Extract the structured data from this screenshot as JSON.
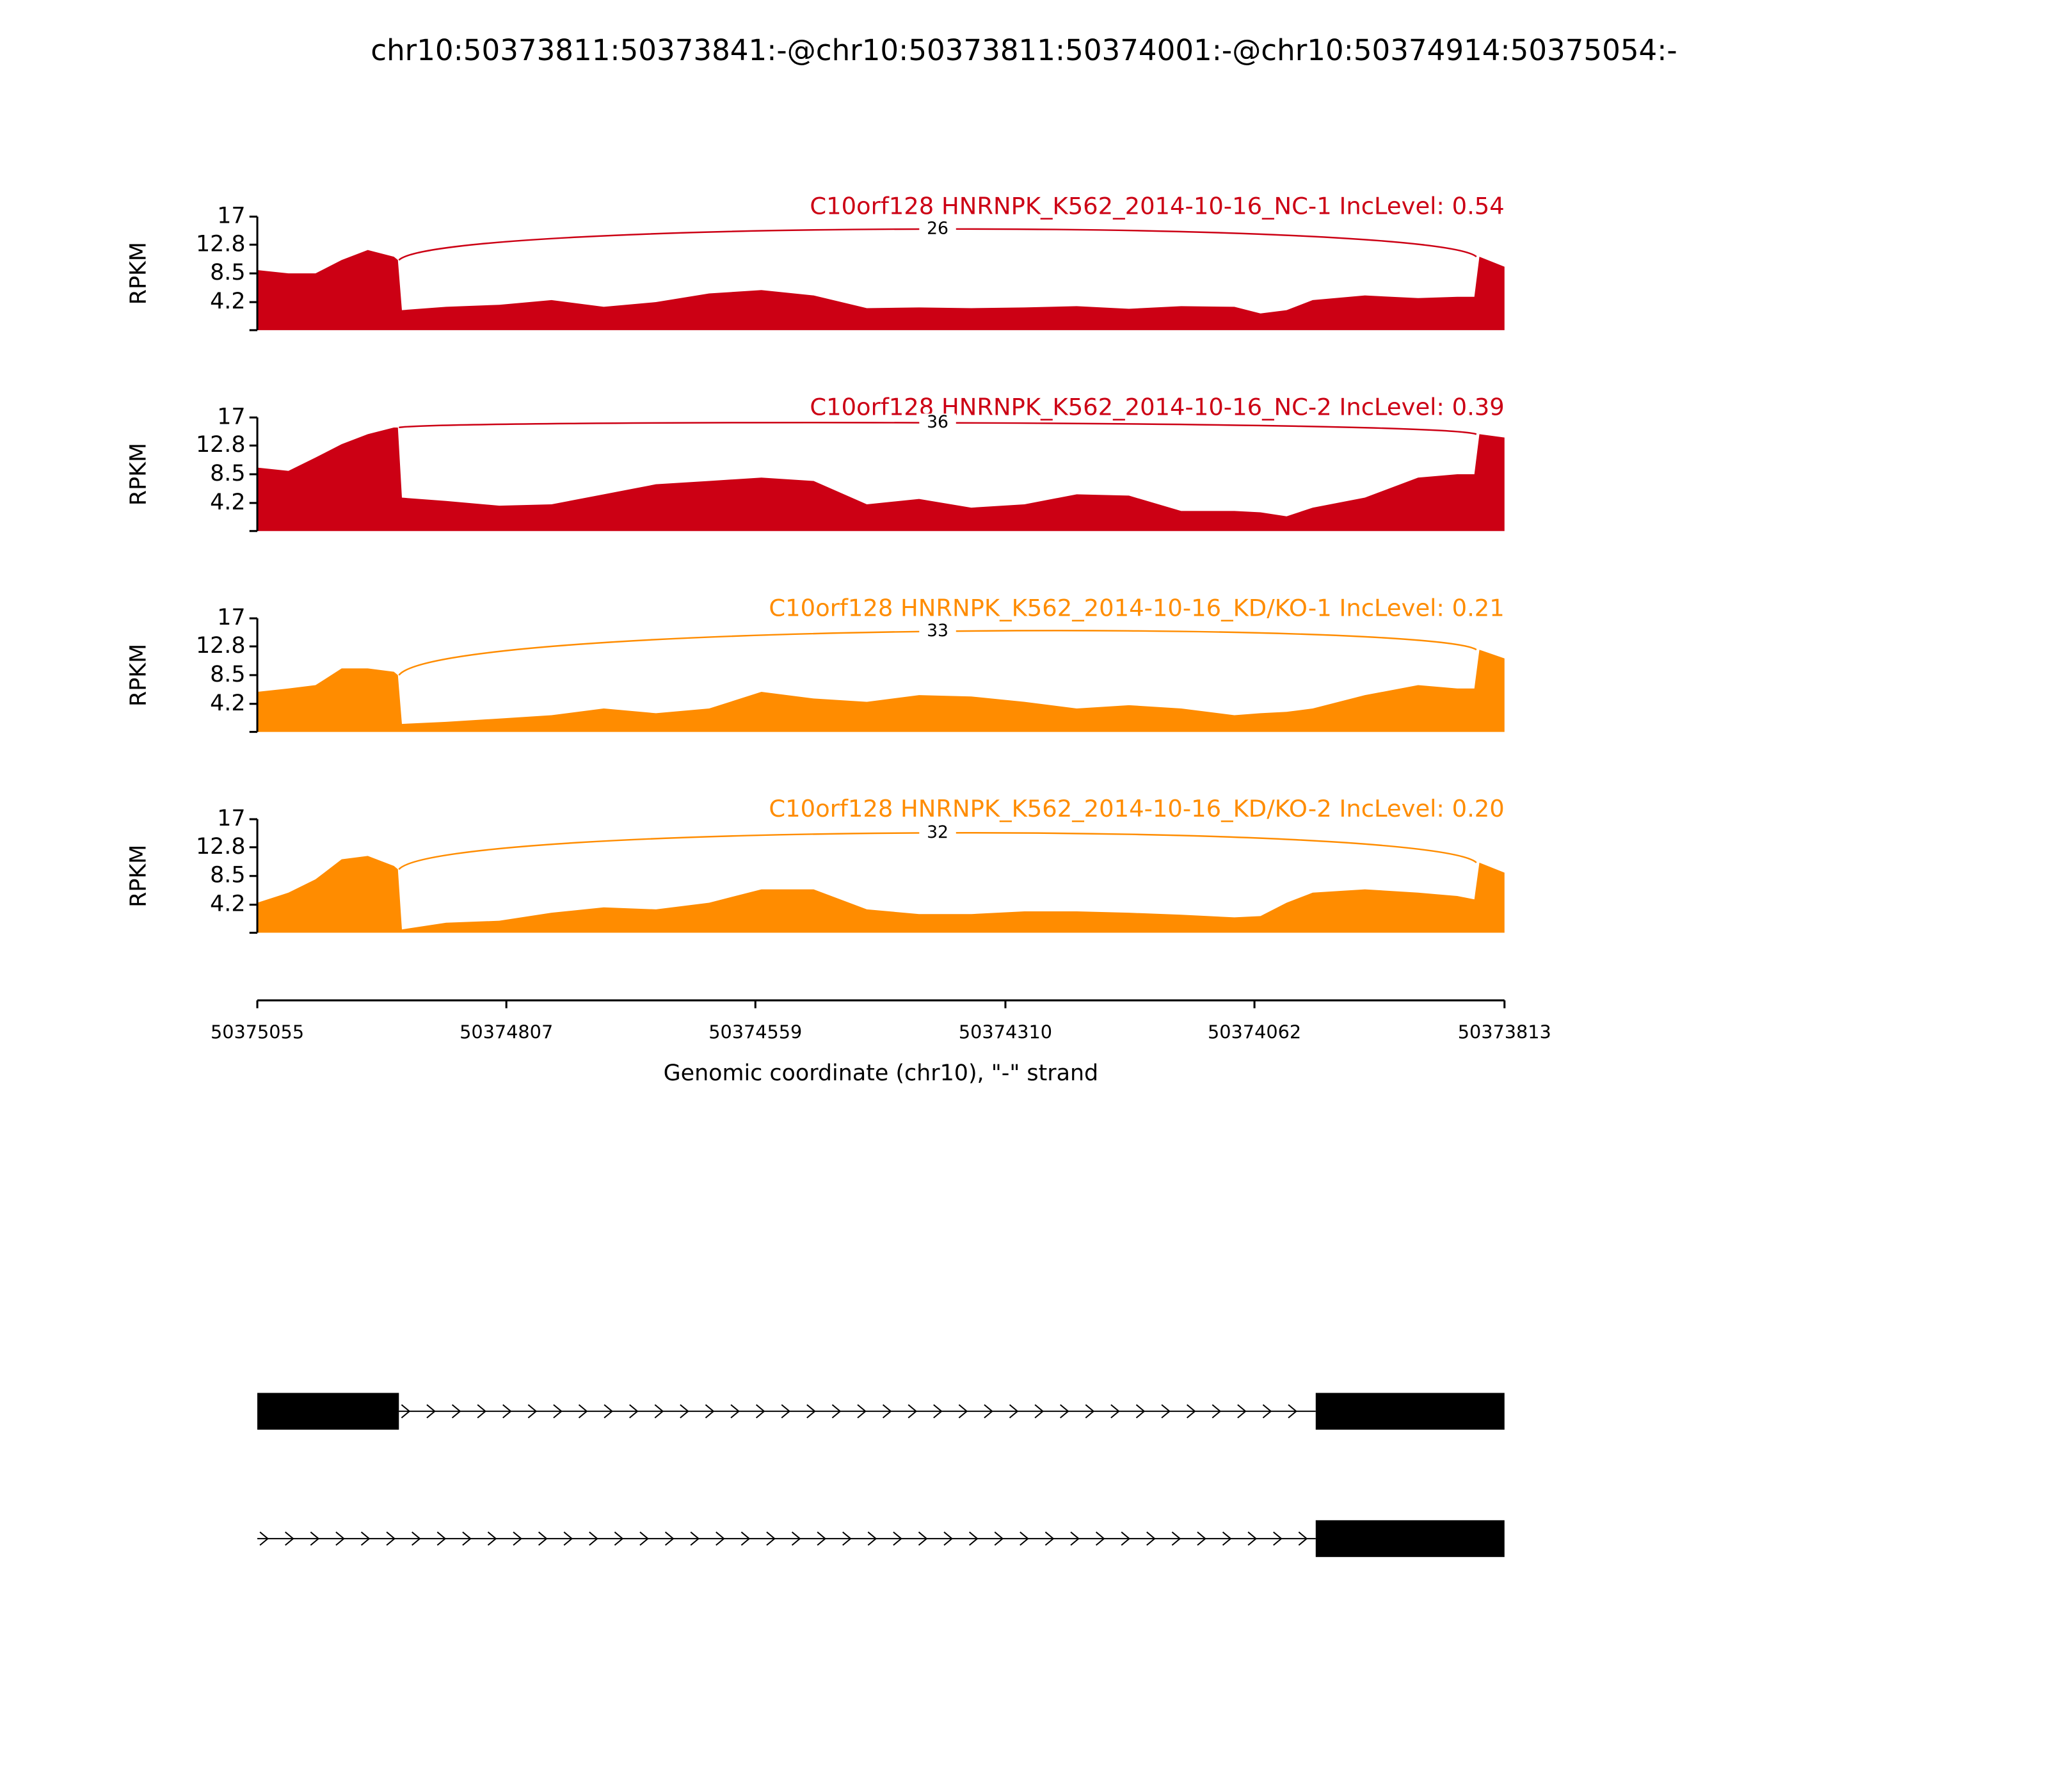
{
  "chart_data": {
    "type": "sashimi",
    "title": "chr10:50373811:50373841:-@chr10:50373811:50374001:-@chr10:50374914:50375054:-",
    "xlabel": "Genomic coordinate (chr10), \"-\" strand",
    "ylabel": "RPKM",
    "x": [
      50375055,
      50375024,
      50374997,
      50374971,
      50374945,
      50374919,
      50374915,
      50374911,
      50374867,
      50374814,
      50374762,
      50374710,
      50374658,
      50374605,
      50374553,
      50374501,
      50374448,
      50374396,
      50374344,
      50374291,
      50374239,
      50374187,
      50374135,
      50374082,
      50374056,
      50374030,
      50374004,
      50373952,
      50373899,
      50373860,
      50373843,
      50373838,
      50373813
    ],
    "xlim": [
      50375055,
      50373813
    ],
    "xticks": [
      50375055,
      50374807,
      50374559,
      50374310,
      50374062,
      50373813
    ],
    "ylim": [
      0,
      17
    ],
    "yticks": [
      4.2,
      8.5,
      12.8,
      17
    ],
    "series": [
      {
        "name": "C10orf128 HNRNPK_K562_2014-10-16_NC-1 IncLevel: 0.54",
        "color": "#cc0014",
        "values": [
          9,
          8.5,
          8.5,
          10.5,
          12,
          11,
          10.5,
          3,
          3.5,
          3.8,
          4.5,
          3.5,
          4.2,
          5.5,
          6,
          5.2,
          3.3,
          3.4,
          3.3,
          3.4,
          3.6,
          3.2,
          3.6,
          3.5,
          2.5,
          3,
          4.5,
          5.2,
          4.8,
          5,
          5,
          11,
          9.5
        ],
        "junctions": [
          {
            "start": 50374914,
            "end": 50373841,
            "count": 26
          }
        ]
      },
      {
        "name": "C10orf128 HNRNPK_K562_2014-10-16_NC-2 IncLevel: 0.39",
        "color": "#cc0014",
        "values": [
          9.5,
          9,
          11,
          13,
          14.5,
          15.5,
          15.5,
          5,
          4.5,
          3.8,
          4,
          5.5,
          7,
          7.5,
          8,
          7.5,
          4,
          4.8,
          3.5,
          4,
          5.5,
          5.3,
          3,
          3,
          2.8,
          2.2,
          3.5,
          5,
          8,
          8.5,
          8.5,
          14.5,
          14
        ],
        "junctions": [
          {
            "start": 50374914,
            "end": 50373841,
            "count": 36
          }
        ]
      },
      {
        "name": "C10orf128 HNRNPK_K562_2014-10-16_KD/KO-1 IncLevel: 0.21",
        "color": "#ff8c00",
        "values": [
          6,
          6.5,
          7,
          9.5,
          9.5,
          9,
          8.5,
          1.2,
          1.5,
          2,
          2.5,
          3.5,
          2.8,
          3.5,
          6,
          5,
          4.5,
          5.5,
          5.3,
          4.5,
          3.5,
          4,
          3.5,
          2.5,
          2.8,
          3,
          3.5,
          5.5,
          7,
          6.5,
          6.5,
          12.3,
          11
        ],
        "junctions": [
          {
            "start": 50374914,
            "end": 50373841,
            "count": 33
          }
        ]
      },
      {
        "name": "C10orf128 HNRNPK_K562_2014-10-16_KD/KO-2 IncLevel: 0.20",
        "color": "#ff8c00",
        "values": [
          4.5,
          6,
          8,
          11,
          11.5,
          10,
          9.5,
          0.5,
          1.5,
          1.8,
          3,
          3.8,
          3.5,
          4.5,
          6.5,
          6.5,
          3.5,
          2.8,
          2.8,
          3.2,
          3.2,
          3,
          2.7,
          2.3,
          2.5,
          4.5,
          6,
          6.5,
          6,
          5.5,
          5,
          10.5,
          9
        ],
        "junctions": [
          {
            "start": 50374914,
            "end": 50373841,
            "count": 32
          }
        ]
      }
    ],
    "isoforms": [
      {
        "exons": [
          [
            50375055,
            50374914
          ],
          [
            50374001,
            50373813
          ]
        ],
        "introns": [
          [
            50374914,
            50374001
          ]
        ]
      },
      {
        "exons": [
          [
            50374001,
            50373813
          ]
        ],
        "introns": [
          [
            50375055,
            50374001
          ]
        ]
      }
    ]
  }
}
